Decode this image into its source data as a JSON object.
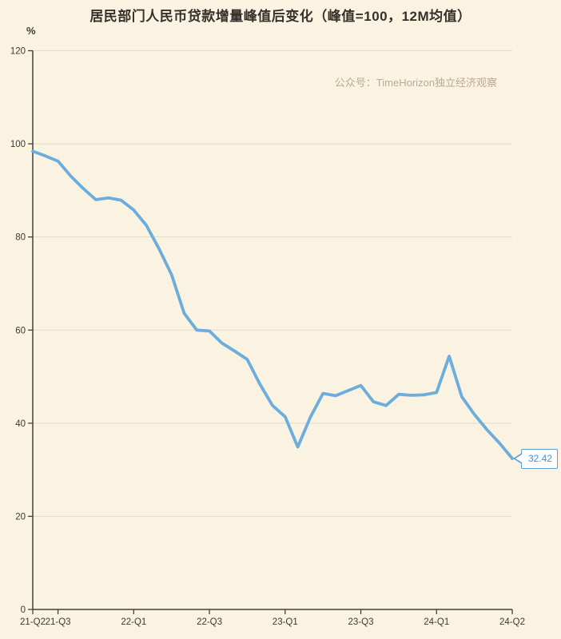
{
  "title": "居民部门人民币贷款增量峰值后变化（峰值=100，12M均值）",
  "watermark": "公众号：TimeHorizon独立经济观察",
  "y_axis_unit": "%",
  "callout": {
    "value": "32.42"
  },
  "colors": {
    "background": "#faf3e1",
    "line": "#6caddd",
    "grid": "#e4dcc6",
    "axis": "#45413a",
    "tick_text": "#3d3a33",
    "title_text": "#36302a",
    "watermark_text": "#b9aa92",
    "callout_border": "#5b9fd4",
    "callout_text": "#4a90c8",
    "callout_bg": "#ffffff"
  },
  "chart_data": {
    "type": "line",
    "title": "居民部门人民币贷款增量峰值后变化（峰值=100，12M均值）",
    "ylabel": "%",
    "ylim": [
      0,
      120
    ],
    "y_ticks": [
      0,
      20,
      40,
      60,
      80,
      100,
      120
    ],
    "x_tick_labels": [
      "21-Q2",
      "21-Q3",
      "22-Q1",
      "22-Q3",
      "23-Q1",
      "23-Q3",
      "24-Q1",
      "24-Q2"
    ],
    "x_tick_indices": [
      0,
      2,
      8,
      14,
      20,
      26,
      32,
      38
    ],
    "grid": "horizontal",
    "legend_position": "none",
    "series": [
      {
        "name": "居民部门人民币贷款增量（峰值=100，12M均值）",
        "values": [
          98.4,
          97.4,
          96.3,
          93.1,
          90.4,
          88.0,
          88.4,
          87.9,
          85.8,
          82.5,
          77.5,
          71.9,
          63.6,
          60.0,
          59.8,
          57.2,
          55.5,
          53.7,
          48.4,
          43.8,
          41.4,
          34.9,
          41.3,
          46.4,
          45.9,
          47.0,
          48.1,
          44.6,
          43.8,
          46.2,
          46.0,
          46.1,
          46.6,
          54.4,
          45.7,
          41.9,
          38.6,
          35.7,
          32.42
        ]
      }
    ],
    "end_label": "32.42"
  }
}
